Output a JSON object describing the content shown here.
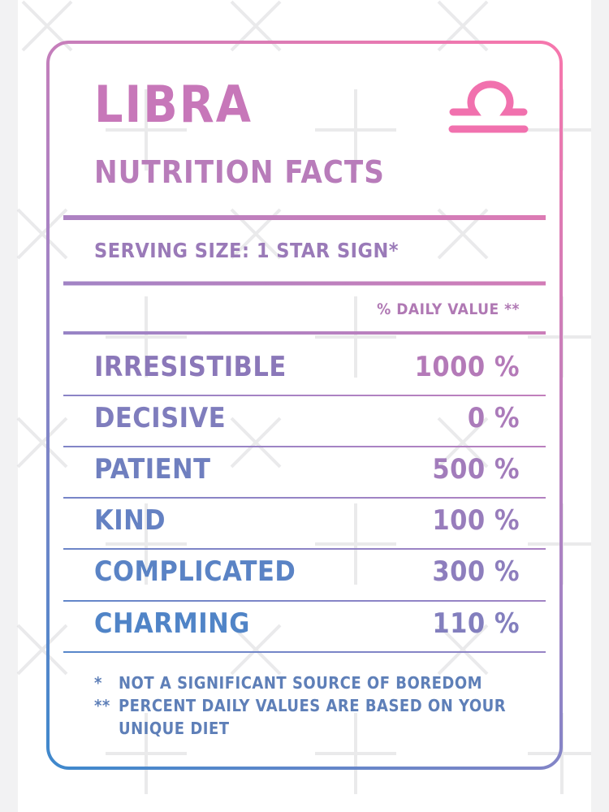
{
  "title": "LIBRA",
  "subtitle": "NUTRITION FACTS",
  "serving_size": "SERVING SIZE: 1 STAR SIGN*",
  "daily_value_header": "% DAILY VALUE **",
  "symbol_icon": "libra-symbol-icon",
  "colors": {
    "pink": "#ee76ae",
    "purple": "#a783c4",
    "blue": "#4c86c9"
  },
  "rows": [
    {
      "label": "IRRESISTIBLE",
      "value": "1000 %"
    },
    {
      "label": "DECISIVE",
      "value": "0 %"
    },
    {
      "label": "PATIENT",
      "value": "500 %"
    },
    {
      "label": "KIND",
      "value": "100 %"
    },
    {
      "label": "COMPLICATED",
      "value": "300 %"
    },
    {
      "label": "CHARMING",
      "value": "110 %"
    }
  ],
  "footnotes": [
    {
      "mark": "*",
      "lines": [
        "NOT A SIGNIFICANT SOURCE OF BOREDOM"
      ]
    },
    {
      "mark": "**",
      "lines": [
        "PERCENT DAILY VALUES ARE BASED ON YOUR",
        "UNIQUE DIET"
      ]
    }
  ]
}
